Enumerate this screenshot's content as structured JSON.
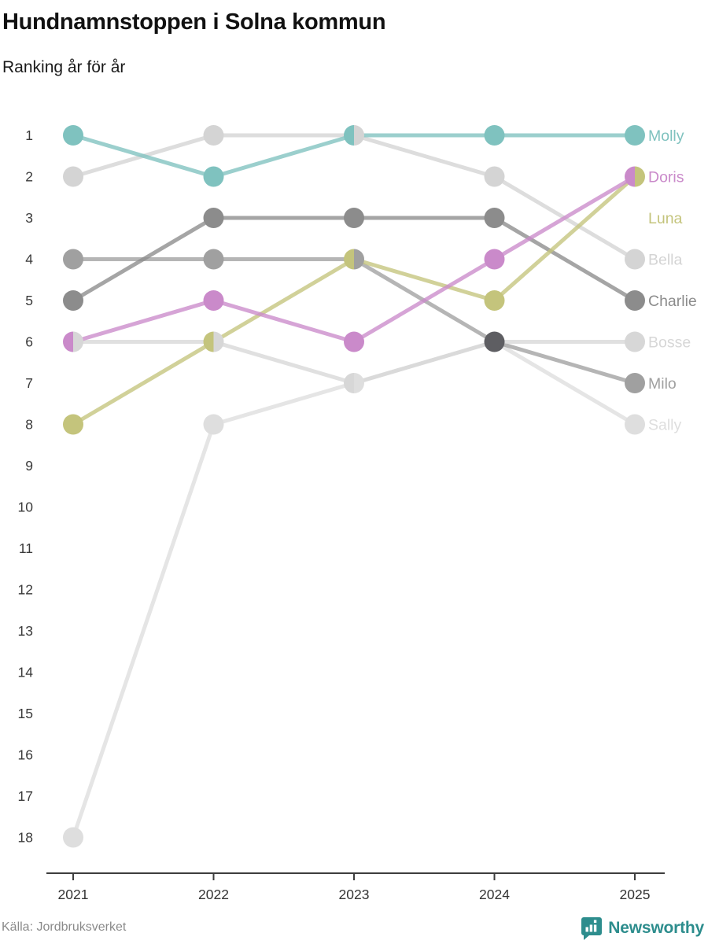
{
  "header": {
    "title": "Hundnamnstoppen i Solna kommun",
    "subtitle": "Ranking år för år"
  },
  "footer": {
    "source": "Källa: Jordbruksverket",
    "brand_name": "Newsworthy",
    "brand_color": "#2d8d8d"
  },
  "colors": {
    "axis": "#3d3d3d",
    "year_tick_label": "#333333",
    "rank_tick_label": "#3a3a3a",
    "tie_dot": "#5e5e62",
    "background": "#ffffff"
  },
  "chart_data": {
    "type": "line",
    "subtype": "bump-ranking-chart",
    "title": "Hundnamnstoppen i Solna kommun",
    "subtitle": "Ranking år för år",
    "xlabel": "",
    "ylabel": "",
    "x": [
      "2021",
      "2022",
      "2023",
      "2024",
      "2025"
    ],
    "rank_ticks": [
      1,
      2,
      3,
      4,
      5,
      6,
      7,
      8,
      9,
      10,
      11,
      12,
      13,
      14,
      15,
      16,
      17,
      18
    ],
    "ylim": [
      1,
      18
    ],
    "y_inverted": true,
    "grid": false,
    "legend_position": "right-end-labels",
    "series": [
      {
        "name": "Molly",
        "color": "#7fc2bf",
        "ranks": [
          1,
          2,
          1,
          1,
          1
        ]
      },
      {
        "name": "Doris",
        "color": "#ca8aca",
        "ranks": [
          6,
          5,
          6,
          4,
          2
        ]
      },
      {
        "name": "Luna",
        "color": "#c4c47c",
        "ranks": [
          8,
          6,
          4,
          5,
          2
        ]
      },
      {
        "name": "Bella",
        "color": "#d4d4d4",
        "ranks": [
          2,
          1,
          1,
          2,
          4
        ]
      },
      {
        "name": "Charlie",
        "color": "#8c8c8c",
        "ranks": [
          5,
          3,
          3,
          3,
          5
        ]
      },
      {
        "name": "Bosse",
        "color": "#d7d7d7",
        "ranks": [
          6,
          6,
          7,
          6,
          6
        ]
      },
      {
        "name": "Milo",
        "color": "#a0a0a0",
        "ranks": [
          4,
          4,
          4,
          6,
          7
        ]
      },
      {
        "name": "Sally",
        "color": "#dedede",
        "ranks": [
          18,
          8,
          7,
          6,
          8
        ]
      }
    ]
  }
}
